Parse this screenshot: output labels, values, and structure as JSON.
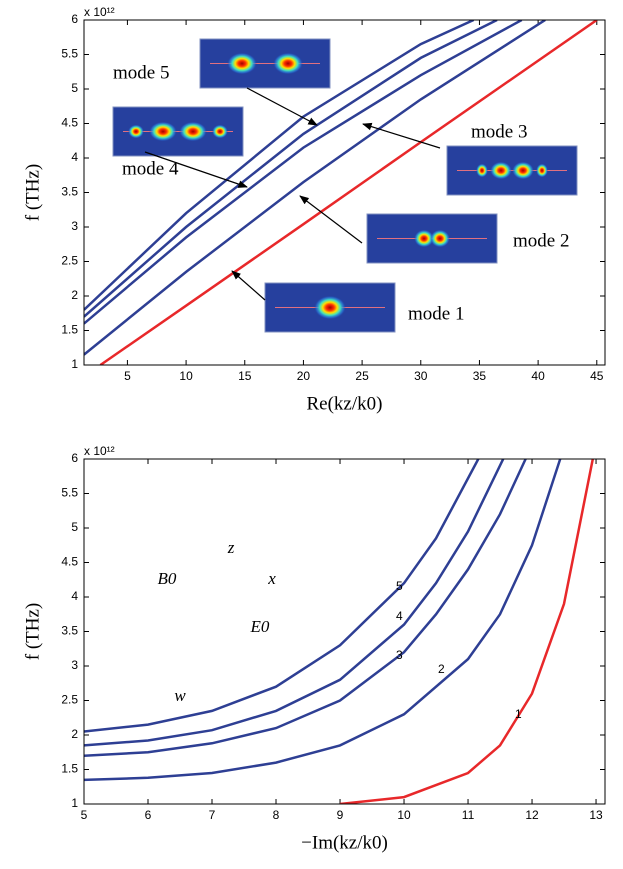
{
  "chart_data": [
    {
      "type": "line",
      "xlabel": "Re(kz/k0)",
      "ylabel": "f (THz)",
      "multiplier": "x 10¹²",
      "xlim": [
        1.3,
        45.7
      ],
      "xticks": [
        5,
        10,
        15,
        20,
        25,
        30,
        35,
        40,
        45
      ],
      "ylim": [
        1,
        6
      ],
      "yticks": [
        1,
        1.5,
        2,
        2.5,
        3,
        3.5,
        4,
        4.5,
        5,
        5.5,
        6
      ],
      "series": [
        {
          "name": "mode 1",
          "color": "#e8282a",
          "x": [
            2.7,
            10,
            20,
            30,
            45
          ],
          "values": [
            1,
            1.86,
            3.04,
            4.23,
            6
          ]
        },
        {
          "name": "mode 2",
          "color": "#2e3f94",
          "x": [
            1.3,
            10,
            20,
            30,
            40.6
          ],
          "values": [
            1.15,
            2.35,
            3.65,
            4.85,
            6
          ]
        },
        {
          "name": "mode 3",
          "color": "#2e3f94",
          "x": [
            1.3,
            10,
            20,
            30,
            38.6
          ],
          "values": [
            1.6,
            2.85,
            4.15,
            5.2,
            6
          ]
        },
        {
          "name": "mode 4",
          "color": "#2e3f94",
          "x": [
            1.3,
            10,
            20,
            30,
            36.5
          ],
          "values": [
            1.7,
            3.0,
            4.35,
            5.45,
            6
          ]
        },
        {
          "name": "mode 5",
          "color": "#2e3f94",
          "x": [
            1.3,
            10,
            20,
            30,
            34.5
          ],
          "values": [
            1.8,
            3.2,
            4.6,
            5.65,
            6
          ]
        }
      ]
    },
    {
      "type": "line",
      "xlabel": "−Im(kz/k0)",
      "ylabel": "f (THz)",
      "multiplier": "x 10¹²",
      "xlim": [
        5,
        13.14
      ],
      "xticks": [
        5,
        6,
        7,
        8,
        9,
        10,
        11,
        12,
        13
      ],
      "ylim": [
        1,
        6
      ],
      "yticks": [
        1,
        1.5,
        2,
        2.5,
        3,
        3.5,
        4,
        4.5,
        5,
        5.5,
        6
      ],
      "annotations": [
        "B0",
        "z",
        "x",
        "E0",
        "w"
      ],
      "series": [
        {
          "name": "1",
          "color": "#e8282a",
          "x": [
            9,
            10,
            11,
            11.5,
            12,
            12.5,
            12.95
          ],
          "values": [
            1,
            1.1,
            1.45,
            1.85,
            2.6,
            3.9,
            6
          ]
        },
        {
          "name": "2",
          "color": "#2e3f94",
          "x": [
            5,
            6,
            7,
            8,
            9,
            10,
            11,
            11.5,
            12,
            12.44
          ],
          "values": [
            1.35,
            1.38,
            1.45,
            1.6,
            1.85,
            2.3,
            3.1,
            3.75,
            4.75,
            6
          ]
        },
        {
          "name": "3",
          "color": "#2e3f94",
          "x": [
            5,
            6,
            7,
            8,
            9,
            10,
            10.5,
            11,
            11.5,
            11.9
          ],
          "values": [
            1.7,
            1.75,
            1.88,
            2.1,
            2.5,
            3.2,
            3.75,
            4.4,
            5.2,
            6
          ]
        },
        {
          "name": "4",
          "color": "#2e3f94",
          "x": [
            5,
            6,
            7,
            8,
            9,
            10,
            10.5,
            11,
            11.55
          ],
          "values": [
            1.85,
            1.92,
            2.07,
            2.35,
            2.8,
            3.6,
            4.2,
            4.95,
            6
          ]
        },
        {
          "name": "5",
          "color": "#2e3f94",
          "x": [
            5,
            6,
            7,
            8,
            9,
            10,
            10.5,
            11.16
          ],
          "values": [
            2.05,
            2.15,
            2.35,
            2.7,
            3.3,
            4.2,
            4.85,
            6
          ]
        }
      ]
    }
  ]
}
